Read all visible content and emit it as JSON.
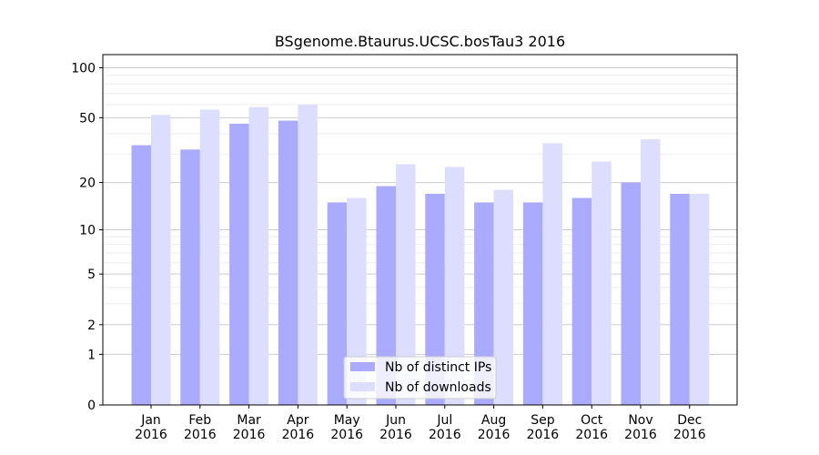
{
  "chart_data": {
    "type": "bar",
    "title": "BSgenome.Btaurus.UCSC.bosTau3 2016",
    "xlabel": "",
    "ylabel": "",
    "y_scale": "log1p",
    "ylim": [
      0,
      120
    ],
    "y_ticks": [
      0,
      1,
      2,
      5,
      10,
      20,
      50,
      100
    ],
    "y_tick_labels": [
      "0",
      "1",
      "2",
      "5",
      "10",
      "20",
      "50",
      "100"
    ],
    "grid": true,
    "legend_position": "bottom-center",
    "categories": [
      {
        "month": "Jan",
        "year": "2016"
      },
      {
        "month": "Feb",
        "year": "2016"
      },
      {
        "month": "Mar",
        "year": "2016"
      },
      {
        "month": "Apr",
        "year": "2016"
      },
      {
        "month": "May",
        "year": "2016"
      },
      {
        "month": "Jun",
        "year": "2016"
      },
      {
        "month": "Jul",
        "year": "2016"
      },
      {
        "month": "Aug",
        "year": "2016"
      },
      {
        "month": "Sep",
        "year": "2016"
      },
      {
        "month": "Oct",
        "year": "2016"
      },
      {
        "month": "Nov",
        "year": "2016"
      },
      {
        "month": "Dec",
        "year": "2016"
      }
    ],
    "series": [
      {
        "name": "Nb of distinct IPs",
        "color": "#aaaaff",
        "values": [
          34,
          32,
          46,
          48,
          15,
          19,
          17,
          15,
          15,
          16,
          20,
          17
        ]
      },
      {
        "name": "Nb of downloads",
        "color": "#ddddff",
        "values": [
          52,
          56,
          58,
          60,
          16,
          26,
          25,
          18,
          35,
          27,
          37,
          17
        ]
      }
    ]
  }
}
